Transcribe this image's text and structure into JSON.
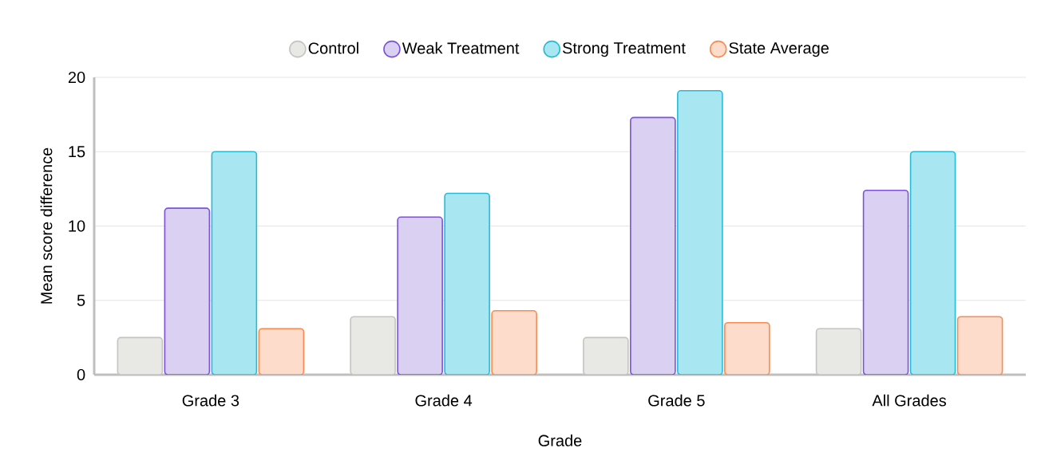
{
  "chart_data": {
    "type": "bar",
    "xlabel": "Grade",
    "ylabel": "Mean score difference",
    "categories": [
      "Grade 3",
      "Grade 4",
      "Grade 5",
      "All Grades"
    ],
    "series": [
      {
        "name": "Control",
        "color": "#e8e8e4",
        "values": [
          2.5,
          3.9,
          2.5,
          3.1
        ]
      },
      {
        "name": "Weak Treatment",
        "color": "#d9d0f2",
        "values": [
          11.2,
          10.6,
          17.3,
          12.4
        ]
      },
      {
        "name": "Strong Treatment",
        "color": "#a8e6f2",
        "values": [
          15.0,
          12.2,
          19.1,
          15.0
        ]
      },
      {
        "name": "State Average",
        "color": "#fddccc",
        "values": [
          3.1,
          4.3,
          3.5,
          3.9
        ]
      }
    ],
    "ylim": [
      0,
      20
    ],
    "yticks": [
      0,
      5,
      10,
      15,
      20
    ],
    "grid": "y",
    "legend": "top"
  }
}
